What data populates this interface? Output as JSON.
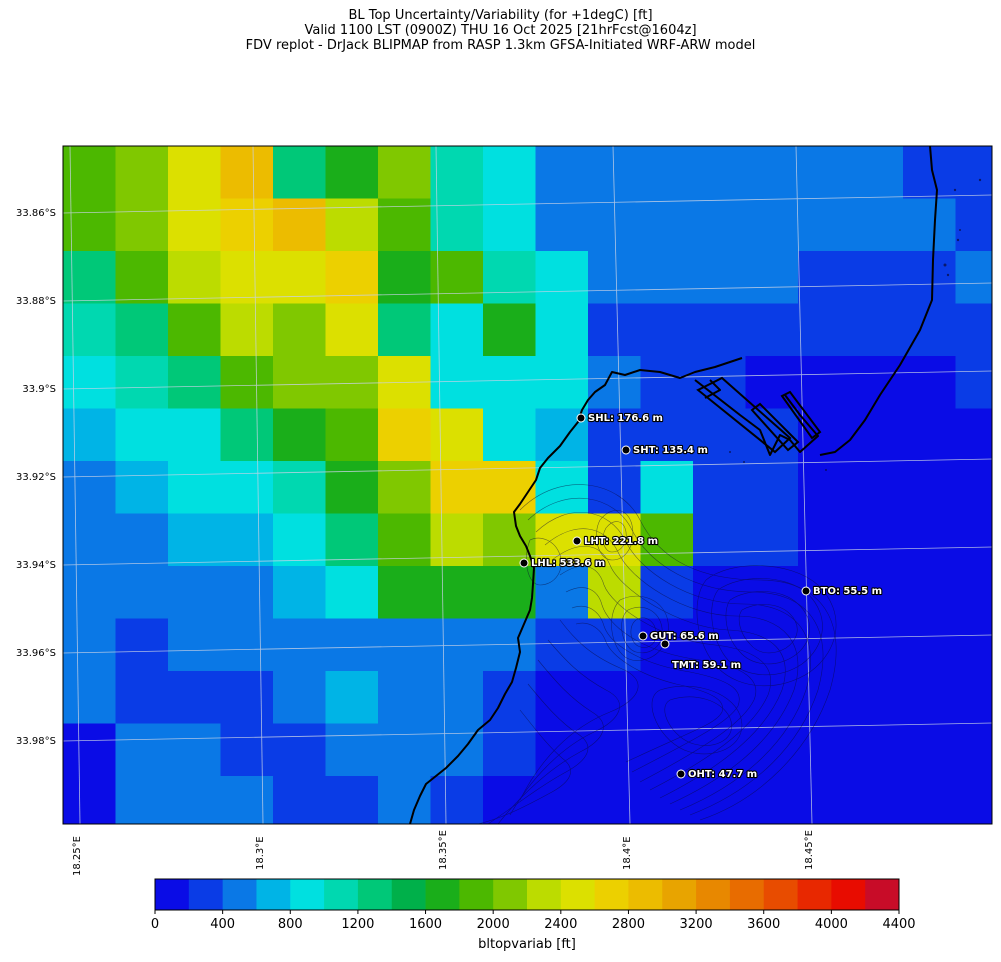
{
  "title": {
    "line1": "BL Top Uncertainty/Variability (for +1degC) [ft]",
    "line2": "Valid 1100 LST (0900Z) THU 16 Oct 2025 [21hrFcst@1604z]",
    "line3": "FDV replot - DrJack BLIPMAP from RASP 1.3km GFSA-Initiated WRF-ARW model"
  },
  "axes": {
    "lat_labels": [
      "33.86°S",
      "33.88°S",
      "33.9°S",
      "33.92°S",
      "33.94°S",
      "33.96°S",
      "33.98°S"
    ],
    "lon_labels": [
      "18.25°E",
      "18.3°E",
      "18.35°E",
      "18.4°E",
      "18.45°E"
    ]
  },
  "grid_bins": [
    [
      0,
      0,
      0,
      0,
      0,
      0,
      0,
      0,
      0,
      0,
      0,
      0,
      0,
      0,
      0,
      0,
      0,
      0
    ],
    [
      0,
      0,
      0,
      0,
      0,
      0,
      0,
      0,
      0,
      0,
      0,
      0,
      0,
      0,
      0,
      0,
      0,
      0
    ],
    [
      0,
      0,
      0,
      0,
      0,
      0,
      0,
      0,
      0,
      0,
      0,
      0,
      0,
      0,
      0,
      0,
      0,
      0
    ],
    [
      0,
      0,
      0,
      0,
      0,
      0,
      0,
      0,
      0,
      0,
      0,
      0,
      0,
      0,
      0,
      0,
      0,
      0
    ],
    [
      0,
      0,
      0,
      0,
      0,
      0,
      0,
      0,
      0,
      0,
      0,
      0,
      0,
      0,
      0,
      0,
      0,
      0
    ],
    [
      0,
      0,
      0,
      0,
      0,
      0,
      0,
      0,
      0,
      0,
      0,
      0,
      0,
      0,
      0,
      0,
      0,
      0
    ],
    [
      0,
      0,
      0,
      0,
      0,
      0,
      0,
      0,
      0,
      0,
      0,
      0,
      0,
      0,
      0,
      0,
      0,
      0
    ],
    [
      0,
      0,
      0,
      0,
      0,
      0,
      0,
      0,
      0,
      0,
      0,
      0,
      0,
      0,
      0,
      0,
      0,
      0
    ],
    [
      0,
      0,
      0,
      0,
      0,
      0,
      0,
      0,
      0,
      0,
      0,
      0,
      0,
      0,
      0,
      0,
      0,
      0
    ],
    [
      0,
      0,
      0,
      0,
      0,
      0,
      0,
      0,
      0,
      0,
      0,
      0,
      0,
      0,
      0,
      0,
      0,
      0
    ],
    [
      0,
      0,
      0,
      0,
      0,
      0,
      0,
      0,
      0,
      0,
      0,
      0,
      0,
      0,
      0,
      0,
      0,
      0
    ],
    [
      0,
      0,
      0,
      0,
      0,
      0,
      0,
      0,
      0,
      0,
      0,
      0,
      0,
      0,
      0,
      0,
      0,
      0
    ],
    [
      0,
      0,
      0,
      0,
      0,
      0,
      0,
      0,
      0,
      0,
      0,
      0,
      0,
      0,
      0,
      0,
      0,
      0
    ]
  ],
  "grid_rows": [
    [
      9,
      10,
      12,
      14,
      6,
      8,
      10,
      5,
      4,
      2,
      2,
      2,
      2,
      2,
      2,
      2,
      1,
      1
    ],
    [
      9,
      10,
      12,
      13,
      14,
      11,
      9,
      5,
      4,
      2,
      2,
      2,
      2,
      2,
      2,
      2,
      2,
      1
    ],
    [
      6,
      9,
      11,
      12,
      12,
      13,
      8,
      9,
      5,
      4,
      2,
      2,
      2,
      2,
      1,
      1,
      1,
      2
    ],
    [
      5,
      6,
      9,
      11,
      10,
      12,
      6,
      4,
      8,
      4,
      1,
      1,
      1,
      1,
      1,
      1,
      1,
      1
    ],
    [
      4,
      5,
      6,
      9,
      10,
      10,
      12,
      4,
      4,
      4,
      2,
      1,
      1,
      0,
      0,
      0,
      0,
      1
    ],
    [
      3,
      4,
      4,
      6,
      8,
      9,
      13,
      12,
      4,
      3,
      1,
      1,
      1,
      1,
      0,
      0,
      0,
      0
    ],
    [
      2,
      3,
      4,
      4,
      5,
      8,
      10,
      13,
      13,
      4,
      1,
      4,
      1,
      1,
      0,
      0,
      0,
      0
    ],
    [
      2,
      2,
      3,
      3,
      4,
      6,
      9,
      11,
      10,
      12,
      12,
      9,
      1,
      1,
      0,
      0,
      0,
      0
    ],
    [
      2,
      2,
      2,
      2,
      3,
      4,
      8,
      8,
      8,
      2,
      11,
      1,
      0,
      0,
      0,
      0,
      0,
      0
    ],
    [
      2,
      1,
      2,
      2,
      2,
      2,
      2,
      2,
      2,
      1,
      1,
      0,
      0,
      0,
      0,
      0,
      0,
      0
    ],
    [
      2,
      1,
      1,
      1,
      2,
      3,
      2,
      2,
      1,
      0,
      0,
      0,
      0,
      0,
      0,
      0,
      0,
      0
    ],
    [
      0,
      2,
      2,
      1,
      1,
      2,
      2,
      2,
      1,
      0,
      0,
      0,
      0,
      0,
      0,
      0,
      0,
      0
    ],
    [
      0,
      2,
      2,
      2,
      1,
      1,
      2,
      1,
      0,
      0,
      0,
      0,
      0,
      0,
      0,
      0,
      0,
      0
    ]
  ],
  "colorbar": {
    "label": "bltopvariab [ft]",
    "tick_labels": [
      "0",
      "400",
      "800",
      "1200",
      "1600",
      "2000",
      "2400",
      "2800",
      "3200",
      "3600",
      "4000",
      "4400"
    ],
    "tick_values": [
      0,
      400,
      800,
      1200,
      1600,
      2000,
      2400,
      2800,
      3200,
      3600,
      4000,
      4400
    ],
    "bin_size": 200,
    "colors": [
      "#0a0ce6",
      "#0a3ce6",
      "#0a78e6",
      "#00b4e6",
      "#00e0e0",
      "#00d8b0",
      "#00c878",
      "#00b04a",
      "#1aae1a",
      "#4cb800",
      "#80c800",
      "#bcdc00",
      "#dce000",
      "#ecd000",
      "#ecbc00",
      "#e8a400",
      "#e88800",
      "#e86c00",
      "#e84c00",
      "#e82800",
      "#e80c00",
      "#c80c28"
    ]
  },
  "stations": [
    {
      "label": "SHL: 176.6 m"
    },
    {
      "label": "SHT: 135.4 m"
    },
    {
      "label": "LHT: 221.8 m"
    },
    {
      "label": "LHL: 533.6 m"
    },
    {
      "label": "BTO: 55.5 m"
    },
    {
      "label": "GUT: 65.6 m"
    },
    {
      "label": "TMT: 59.1 m"
    },
    {
      "label": "OHT: 47.7 m"
    }
  ]
}
